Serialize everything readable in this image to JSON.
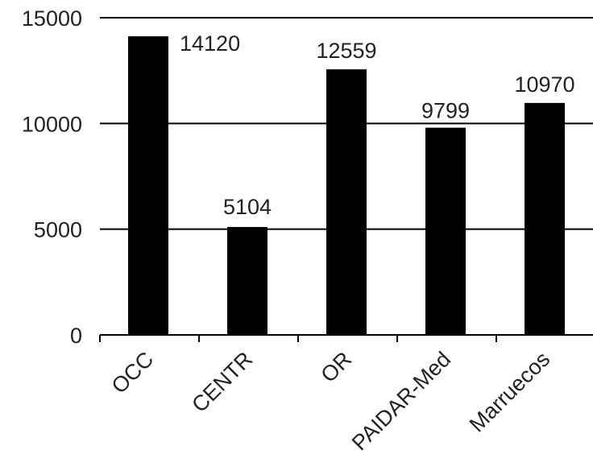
{
  "chart_data": {
    "type": "bar",
    "categories": [
      "OCC",
      "CENTR",
      "OR",
      "PAIDAR-Med",
      "Marruecos"
    ],
    "values": [
      14120,
      5104,
      12559,
      9799,
      10970
    ],
    "data_labels": [
      "14120",
      "5104",
      "12559",
      "9799",
      "10970"
    ],
    "yticks": [
      "0",
      "5000",
      "10000",
      "15000"
    ],
    "ylim": [
      0,
      15000
    ],
    "grid": true,
    "bar_color": "#000000",
    "grid_color": "#000000"
  }
}
